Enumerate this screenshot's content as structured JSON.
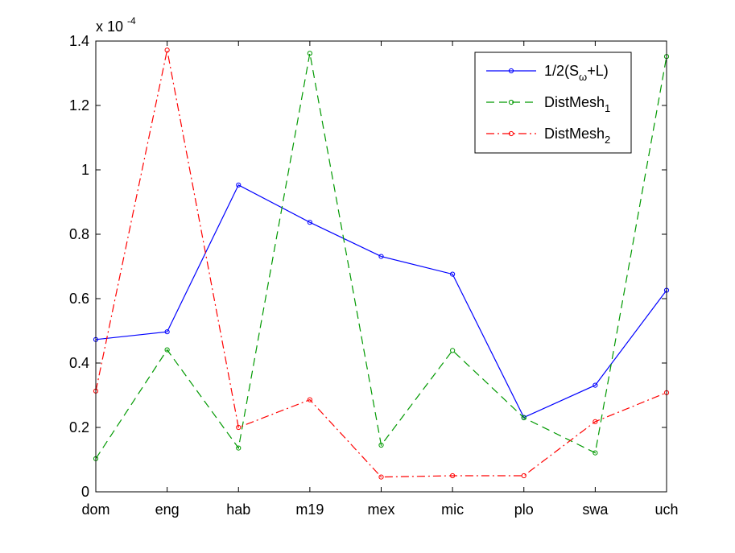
{
  "chart_data": {
    "type": "line",
    "categories": [
      "dom",
      "eng",
      "hab",
      "m19",
      "mex",
      "mic",
      "plo",
      "swa",
      "uch"
    ],
    "ylim": [
      0,
      1.4
    ],
    "yticks": [
      0,
      0.2,
      0.4,
      0.6,
      0.8,
      1,
      1.2,
      1.4
    ],
    "ytick_labels": [
      "0",
      "0.2",
      "0.4",
      "0.6",
      "0.8",
      "1",
      "1.2",
      "1.4"
    ],
    "y_scale_label": {
      "base": "x 10",
      "exponent": "-4"
    },
    "grid": false,
    "legend_position": "top-right",
    "series": [
      {
        "name": "1/2(Sω+L)",
        "legend": {
          "main": "1/2(S",
          "sub": "ω",
          "tail": "+L)"
        },
        "color": "#0000ff",
        "line_style": "solid",
        "marker": "circle",
        "values": [
          0.473,
          0.497,
          0.953,
          0.837,
          0.731,
          0.676,
          0.231,
          0.331,
          0.626
        ]
      },
      {
        "name": "DistMesh1",
        "legend": {
          "main": "DistMesh",
          "sub": "1",
          "tail": ""
        },
        "color": "#009900",
        "line_style": "dashed",
        "marker": "circle",
        "values": [
          0.103,
          0.441,
          0.136,
          1.362,
          0.145,
          0.439,
          0.23,
          0.121,
          1.352
        ]
      },
      {
        "name": "DistMesh2",
        "legend": {
          "main": "DistMesh",
          "sub": "2",
          "tail": ""
        },
        "color": "#ff0000",
        "line_style": "dashdot",
        "marker": "circle",
        "values": [
          0.313,
          1.372,
          0.2,
          0.286,
          0.046,
          0.05,
          0.05,
          0.218,
          0.308
        ]
      }
    ]
  }
}
